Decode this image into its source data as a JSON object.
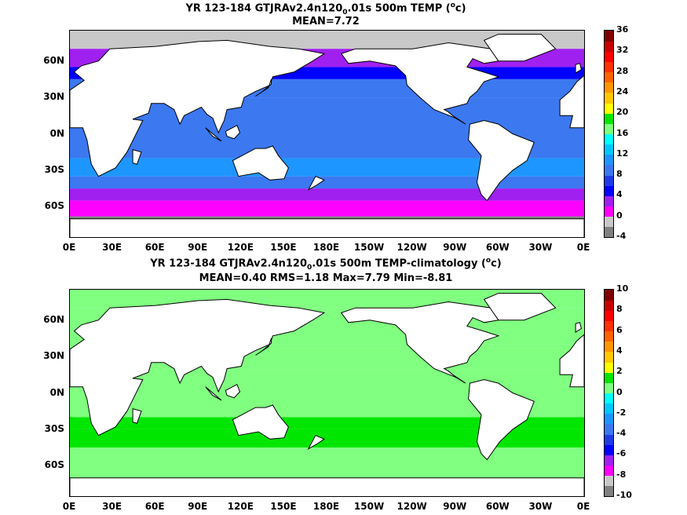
{
  "chart_data": [
    {
      "type": "heatmap",
      "title": "YR 123-184 GTJRAv2.4n120",
      "title_sub": "0",
      "title_rest": ".01s 500m TEMP (",
      "title_sup": "o",
      "title_end": "c)",
      "subtitle": "MEAN=7.72",
      "x_ticks": [
        "0E",
        "30E",
        "60E",
        "90E",
        "120E",
        "150E",
        "180E",
        "150W",
        "120W",
        "90W",
        "60W",
        "30W",
        "0E"
      ],
      "y_ticks": [
        "60N",
        "30N",
        "0N",
        "30S",
        "60S"
      ],
      "y_tick_values": [
        60,
        30,
        0,
        -30,
        -60
      ],
      "xlim": [
        0,
        360
      ],
      "ylim": [
        -85,
        85
      ],
      "colorbar": {
        "min": -4,
        "max": 36,
        "step": 2,
        "labels": [
          "36",
          "32",
          "28",
          "24",
          "20",
          "16",
          "12",
          "8",
          "4",
          "0",
          "-4"
        ],
        "colors": [
          "#808080",
          "#c8c8c8",
          "#ff00ff",
          "#a020f0",
          "#0000ff",
          "#1e3ce6",
          "#3c78f0",
          "#1e96ff",
          "#00c8ff",
          "#00ffff",
          "#80ff80",
          "#00e600",
          "#ffff00",
          "#ffc800",
          "#ff9600",
          "#ff6400",
          "#ff3200",
          "#ff0000",
          "#c80000",
          "#800000"
        ]
      },
      "ocean_bands": [
        {
          "lat": [
            70,
            85
          ],
          "value": -1
        },
        {
          "lat": [
            55,
            70
          ],
          "value": 2
        },
        {
          "lat": [
            45,
            55
          ],
          "value": 5
        },
        {
          "lat": [
            30,
            45
          ],
          "value": 8
        },
        {
          "lat": [
            -20,
            30
          ],
          "value": 9
        },
        {
          "lat": [
            -35,
            -20
          ],
          "value": 11
        },
        {
          "lat": [
            -45,
            -35
          ],
          "value": 8
        },
        {
          "lat": [
            -55,
            -45
          ],
          "value": 3
        },
        {
          "lat": [
            -68,
            -55
          ],
          "value": 0
        },
        {
          "lat": [
            -85,
            -68
          ],
          "value": -3
        }
      ]
    },
    {
      "type": "heatmap",
      "title": "YR 123-184 GTJRAv2.4n120",
      "title_sub": "0",
      "title_rest": ".01s 500m TEMP-climatology (",
      "title_sup": "o",
      "title_end": "c)",
      "subtitle": "MEAN=0.40   RMS=1.18   Max=7.79   Min=-8.81",
      "x_ticks": [
        "0E",
        "30E",
        "60E",
        "90E",
        "120E",
        "150E",
        "180E",
        "150W",
        "120W",
        "90W",
        "60W",
        "30W",
        "0E"
      ],
      "y_ticks": [
        "60N",
        "30N",
        "0N",
        "30S",
        "60S"
      ],
      "y_tick_values": [
        60,
        30,
        0,
        -30,
        -60
      ],
      "xlim": [
        0,
        360
      ],
      "ylim": [
        -85,
        85
      ],
      "colorbar": {
        "min": -10,
        "max": 10,
        "step": 1,
        "labels": [
          "10",
          "8",
          "6",
          "4",
          "2",
          "0",
          "-2",
          "-4",
          "-6",
          "-8",
          "-10"
        ],
        "colors": [
          "#808080",
          "#c8c8c8",
          "#ff00ff",
          "#a020f0",
          "#0000ff",
          "#1e3ce6",
          "#3c78f0",
          "#1e96ff",
          "#00c8ff",
          "#00ffff",
          "#80ff80",
          "#00e600",
          "#ffff00",
          "#ffc800",
          "#ff9600",
          "#ff6400",
          "#ff3200",
          "#ff0000",
          "#c80000",
          "#800000"
        ]
      },
      "ocean_bands": [
        {
          "lat": [
            70,
            85
          ],
          "value": 0.5
        },
        {
          "lat": [
            40,
            70
          ],
          "value": 0.5
        },
        {
          "lat": [
            20,
            40
          ],
          "value": 0.5
        },
        {
          "lat": [
            -20,
            20
          ],
          "value": 0.5
        },
        {
          "lat": [
            -30,
            -20
          ],
          "value": 1.5
        },
        {
          "lat": [
            -45,
            -30
          ],
          "value": 1.5
        },
        {
          "lat": [
            -70,
            -45
          ],
          "value": 0.5
        },
        {
          "lat": [
            -85,
            -70
          ],
          "value": 0.5
        }
      ]
    }
  ]
}
